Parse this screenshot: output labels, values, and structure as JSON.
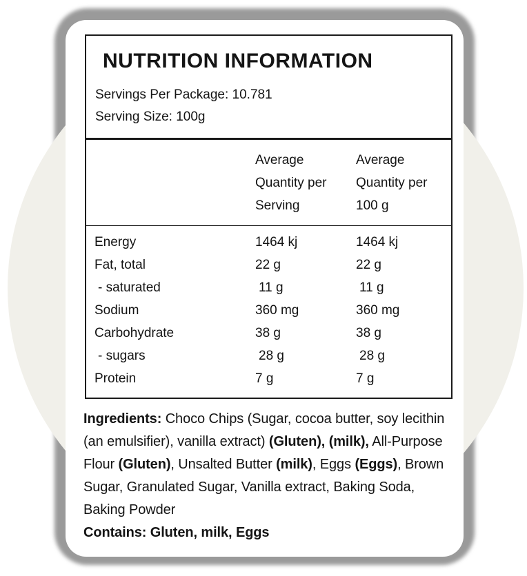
{
  "label": {
    "title": "NUTRITION INFORMATION",
    "servings_per_package": "Servings Per Package: 10.781",
    "serving_size": "Serving Size: 100g",
    "columns": [
      "Average Quantity per Serving",
      "Average Quantity per 100 g"
    ],
    "rows": [
      {
        "name": "Energy",
        "per_serving": "1464 kj",
        "per_100g": "1464 kj",
        "indent": false
      },
      {
        "name": "Fat, total",
        "per_serving": "22 g",
        "per_100g": "22 g",
        "indent": false
      },
      {
        "name": "- saturated",
        "per_serving": "11 g",
        "per_100g": "11 g",
        "indent": true
      },
      {
        "name": "Sodium",
        "per_serving": "360 mg",
        "per_100g": "360 mg",
        "indent": false
      },
      {
        "name": "Carbohydrate",
        "per_serving": "38 g",
        "per_100g": "38 g",
        "indent": false
      },
      {
        "name": "- sugars",
        "per_serving": "28 g",
        "per_100g": "28 g",
        "indent": true
      },
      {
        "name": "Protein",
        "per_serving": "7 g",
        "per_100g": "7 g",
        "indent": false
      }
    ],
    "ingredients_segments": [
      {
        "text": "Ingredients: ",
        "bold": true
      },
      {
        "text": "Choco Chips (Sugar, cocoa butter, soy lecithin (an emulsifier), vanilla extract) ",
        "bold": false
      },
      {
        "text": "(Gluten),",
        "bold": true
      },
      {
        "text": " ",
        "bold": false
      },
      {
        "text": "(milk),",
        "bold": true
      },
      {
        "text": " All-Purpose Flour ",
        "bold": false
      },
      {
        "text": "(Gluten)",
        "bold": true
      },
      {
        "text": ", Unsalted Butter ",
        "bold": false
      },
      {
        "text": "(milk)",
        "bold": true
      },
      {
        "text": ", Eggs ",
        "bold": false
      },
      {
        "text": "(Eggs)",
        "bold": true
      },
      {
        "text": ", Brown Sugar, Granulated Sugar, Vanilla extract, Baking Soda, Baking Powder",
        "bold": false
      }
    ],
    "contains": "Contains: Gluten, milk, Eggs"
  },
  "colors": {
    "card_background": "#ffffff",
    "card_shadow": "#9a9a9a",
    "background_circle": "#f1f0ea",
    "table_border": "#1a1a1a",
    "text": "#141414"
  }
}
